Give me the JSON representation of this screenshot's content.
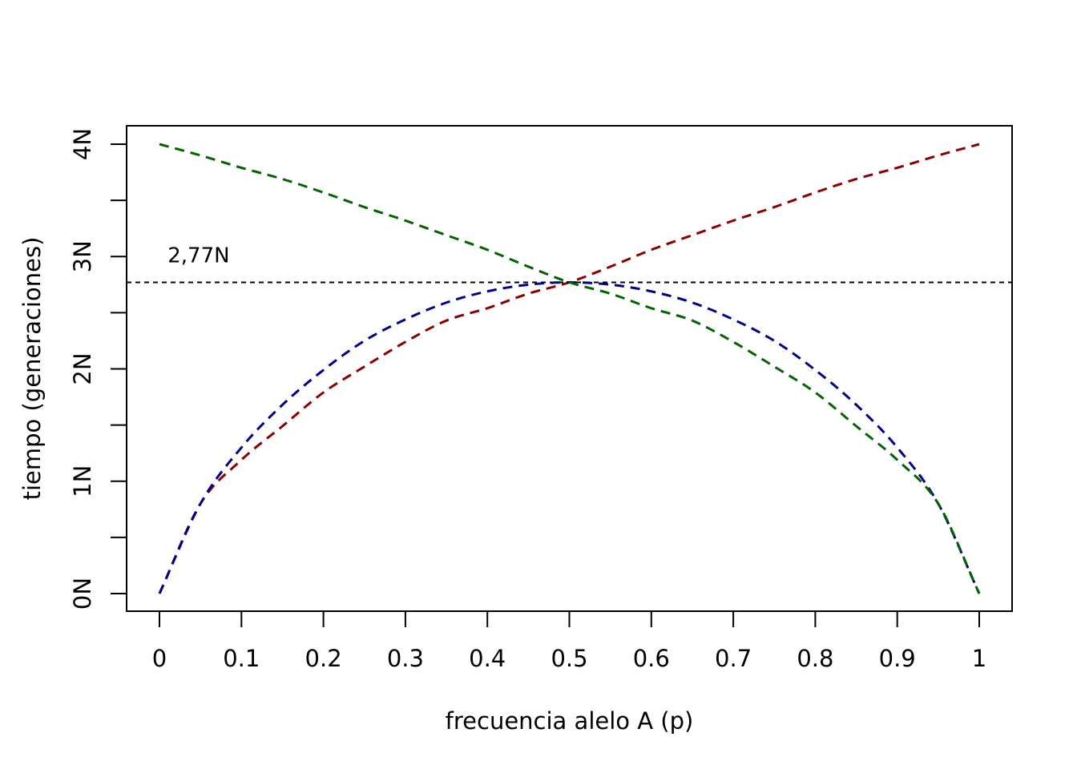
{
  "chart_data": {
    "type": "line",
    "title": "",
    "xlabel": "frecuencia alelo A (p)",
    "ylabel": "tiempo (generaciones)",
    "xlim": [
      0,
      1
    ],
    "ylim": [
      0,
      4
    ],
    "x_ticks": [
      0,
      0.1,
      0.2,
      0.3,
      0.4,
      0.5,
      0.6,
      0.7,
      0.8,
      0.9,
      1
    ],
    "x_tick_labels": [
      "0",
      "0.1",
      "0.2",
      "0.3",
      "0.4",
      "0.5",
      "0.6",
      "0.7",
      "0.8",
      "0.9",
      "1"
    ],
    "y_ticks": [
      0,
      1,
      2,
      3,
      4
    ],
    "y_tick_labels": [
      "0N",
      "1N",
      "2N",
      "3N",
      "4N"
    ],
    "y_minor_ticks": [
      0.5,
      1.5,
      2.5,
      3.5
    ],
    "grid": false,
    "x": [
      0,
      0.05,
      0.1,
      0.15,
      0.2,
      0.25,
      0.3,
      0.35,
      0.4,
      0.45,
      0.5,
      0.55,
      0.6,
      0.65,
      0.7,
      0.75,
      0.8,
      0.85,
      0.9,
      0.95,
      1
    ],
    "series": [
      {
        "color": "#8b0000",
        "style": "dashed",
        "values": [
          0,
          0.8,
          1.19,
          1.49,
          1.79,
          2.02,
          2.24,
          2.43,
          2.54,
          2.67,
          2.77,
          2.91,
          3.06,
          3.19,
          3.32,
          3.44,
          3.57,
          3.69,
          3.79,
          3.9,
          4.0
        ]
      },
      {
        "color": "#00008b",
        "style": "dashed",
        "values": [
          0,
          0.8,
          1.3,
          1.68,
          1.99,
          2.25,
          2.44,
          2.59,
          2.69,
          2.75,
          2.77,
          2.75,
          2.69,
          2.59,
          2.44,
          2.25,
          1.99,
          1.68,
          1.3,
          0.8,
          0
        ]
      },
      {
        "color": "#006400",
        "style": "dashed",
        "values": [
          4.0,
          3.9,
          3.79,
          3.69,
          3.57,
          3.44,
          3.32,
          3.19,
          3.06,
          2.91,
          2.77,
          2.67,
          2.54,
          2.43,
          2.24,
          2.02,
          1.79,
          1.49,
          1.19,
          0.8,
          0
        ]
      }
    ],
    "reference_line": {
      "y": 2.77,
      "color": "#000000",
      "style": "dashed"
    },
    "annotations": [
      {
        "text": "2,77N",
        "x": 0.01,
        "y": 2.95
      }
    ]
  }
}
